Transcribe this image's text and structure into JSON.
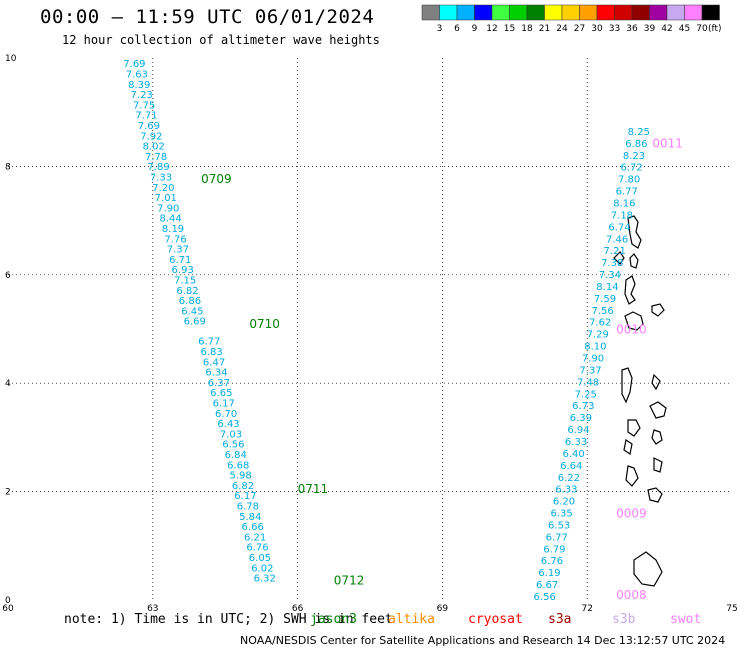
{
  "header": {
    "title": "00:00 – 11:59 UTC 06/01/2024",
    "subtitle": "12 hour collection of altimeter wave heights"
  },
  "colorbar": {
    "colors": [
      "#808080",
      "#00ffff",
      "#00b0ff",
      "#0000ff",
      "#40ff40",
      "#00d000",
      "#008000",
      "#ffff00",
      "#ffd000",
      "#ffa000",
      "#ff0000",
      "#d00000",
      "#900000",
      "#a000a0",
      "#c8a8f0",
      "#ff80ff",
      "#000000"
    ],
    "labels": [
      "3",
      "6",
      "9",
      "12",
      "15",
      "18",
      "21",
      "24",
      "27",
      "30",
      "33",
      "36",
      "39",
      "42",
      "45",
      "70"
    ],
    "unit": "(ft)"
  },
  "note": "note: 1) Time is in UTC; 2) SWH is in feet",
  "footer": "NOAA/NESDIS Center for Satellite Applications and Research   14 Dec 13:12:57 UTC 2024",
  "satellites": [
    {
      "name": "jason3",
      "color": "#008000"
    },
    {
      "name": "altika",
      "color": "#ff8c00"
    },
    {
      "name": "cryosat",
      "color": "#ff0000"
    },
    {
      "name": "s3a",
      "color": "#a00000"
    },
    {
      "name": "s3b",
      "color": "#c8a8f0"
    },
    {
      "name": "swot",
      "color": "#ff80ff"
    }
  ],
  "chart_data": {
    "type": "scatter",
    "xlim": [
      60,
      75
    ],
    "ylim": [
      0,
      10
    ],
    "x_ticks": [
      "60",
      "63",
      "66",
      "69",
      "72",
      "75"
    ],
    "y_ticks": [
      "0",
      "2",
      "4",
      "6",
      "8",
      "10"
    ],
    "grid": true,
    "value_color": "#00aadd",
    "series": [
      {
        "name": "jason3",
        "color": "#008000",
        "points": [
          {
            "x": 62.85,
            "y": 9.83,
            "v": "7.69"
          },
          {
            "x": 62.9,
            "y": 9.64,
            "v": "7.63"
          },
          {
            "x": 62.95,
            "y": 9.45,
            "v": "8.39"
          },
          {
            "x": 63.0,
            "y": 9.26,
            "v": "7.23"
          },
          {
            "x": 63.05,
            "y": 9.07,
            "v": "7.75"
          },
          {
            "x": 63.1,
            "y": 8.88,
            "v": "7.71"
          },
          {
            "x": 63.15,
            "y": 8.69,
            "v": "7.69"
          },
          {
            "x": 63.2,
            "y": 8.5,
            "v": "7.92"
          },
          {
            "x": 63.25,
            "y": 8.31,
            "v": "8.02"
          },
          {
            "x": 63.3,
            "y": 8.12,
            "v": "7.78"
          },
          {
            "x": 63.35,
            "y": 7.93,
            "v": "7.89"
          },
          {
            "x": 63.4,
            "y": 7.74,
            "v": "7.33"
          },
          {
            "x": 63.45,
            "y": 7.55,
            "v": "7.20"
          },
          {
            "x": 63.5,
            "y": 7.36,
            "v": "7.01"
          },
          {
            "x": 63.55,
            "y": 7.17,
            "v": "7.90"
          },
          {
            "x": 63.6,
            "y": 6.98,
            "v": "8.44"
          },
          {
            "x": 63.65,
            "y": 6.79,
            "v": "8.19"
          },
          {
            "x": 63.7,
            "y": 6.6,
            "v": "7.76"
          },
          {
            "x": 63.75,
            "y": 6.41,
            "v": "7.37"
          },
          {
            "x": 63.8,
            "y": 6.22,
            "v": "6.71"
          },
          {
            "x": 63.85,
            "y": 6.03,
            "v": "6.93"
          },
          {
            "x": 63.9,
            "y": 5.84,
            "v": "7.15"
          },
          {
            "x": 63.95,
            "y": 5.65,
            "v": "6.82"
          },
          {
            "x": 64.0,
            "y": 5.46,
            "v": "6.86"
          },
          {
            "x": 64.05,
            "y": 5.27,
            "v": "6.45"
          },
          {
            "x": 64.1,
            "y": 5.08,
            "v": "6.69"
          },
          {
            "x": 64.4,
            "y": 4.71,
            "v": "6.77"
          },
          {
            "x": 64.45,
            "y": 4.52,
            "v": "6.83"
          },
          {
            "x": 64.5,
            "y": 4.33,
            "v": "6.47"
          },
          {
            "x": 64.55,
            "y": 4.14,
            "v": "6.34"
          },
          {
            "x": 64.6,
            "y": 3.95,
            "v": "6.37"
          },
          {
            "x": 64.65,
            "y": 3.76,
            "v": "6.65"
          },
          {
            "x": 64.7,
            "y": 3.57,
            "v": "6.17"
          },
          {
            "x": 64.75,
            "y": 3.38,
            "v": "6.70"
          },
          {
            "x": 64.8,
            "y": 3.19,
            "v": "6.43"
          },
          {
            "x": 64.85,
            "y": 3.0,
            "v": "7.03"
          },
          {
            "x": 64.9,
            "y": 2.81,
            "v": "6.56"
          },
          {
            "x": 64.95,
            "y": 2.62,
            "v": "6.84"
          },
          {
            "x": 65.0,
            "y": 2.43,
            "v": "6.68"
          },
          {
            "x": 65.05,
            "y": 2.24,
            "v": "5.98"
          },
          {
            "x": 65.1,
            "y": 2.05,
            "v": "6.82"
          },
          {
            "x": 65.15,
            "y": 1.86,
            "v": "6.17"
          },
          {
            "x": 65.2,
            "y": 1.67,
            "v": "6.78"
          },
          {
            "x": 65.25,
            "y": 1.48,
            "v": "5.84"
          },
          {
            "x": 65.3,
            "y": 1.29,
            "v": "6.66"
          },
          {
            "x": 65.35,
            "y": 1.1,
            "v": "6.21"
          },
          {
            "x": 65.4,
            "y": 0.91,
            "v": "6.76"
          },
          {
            "x": 65.45,
            "y": 0.72,
            "v": "6.05"
          },
          {
            "x": 65.5,
            "y": 0.53,
            "v": "6.02"
          },
          {
            "x": 65.55,
            "y": 0.34,
            "v": "6.32"
          }
        ],
        "passes": [
          {
            "x": 64.0,
            "y": 7.69,
            "label": "0709"
          },
          {
            "x": 65.0,
            "y": 5.02,
            "label": "0710"
          },
          {
            "x": 66.0,
            "y": 1.97,
            "label": "0711"
          },
          {
            "x": 66.75,
            "y": 0.29,
            "label": "0712"
          }
        ]
      },
      {
        "name": "swot",
        "color": "#ff80ff",
        "points": [
          {
            "x": 71.35,
            "y": 0.0,
            "v": "6.56"
          },
          {
            "x": 71.4,
            "y": 0.22,
            "v": "6.67"
          },
          {
            "x": 71.45,
            "y": 0.44,
            "v": "6.19"
          },
          {
            "x": 71.5,
            "y": 0.66,
            "v": "6.76"
          },
          {
            "x": 71.55,
            "y": 0.88,
            "v": "6.79"
          },
          {
            "x": 71.6,
            "y": 1.1,
            "v": "6.77"
          },
          {
            "x": 71.65,
            "y": 1.32,
            "v": "6.53"
          },
          {
            "x": 71.7,
            "y": 1.54,
            "v": "6.35"
          },
          {
            "x": 71.75,
            "y": 1.76,
            "v": "6.20"
          },
          {
            "x": 71.8,
            "y": 1.98,
            "v": "6.33"
          },
          {
            "x": 71.85,
            "y": 2.2,
            "v": "6.22"
          },
          {
            "x": 71.9,
            "y": 2.42,
            "v": "6.64"
          },
          {
            "x": 71.95,
            "y": 2.64,
            "v": "6.40"
          },
          {
            "x": 72.0,
            "y": 2.86,
            "v": "6.33"
          },
          {
            "x": 72.05,
            "y": 3.08,
            "v": "6.94"
          },
          {
            "x": 72.1,
            "y": 3.3,
            "v": "6.39"
          },
          {
            "x": 72.15,
            "y": 3.52,
            "v": "6.73"
          },
          {
            "x": 72.2,
            "y": 3.74,
            "v": "7.25"
          },
          {
            "x": 72.25,
            "y": 3.96,
            "v": "7.48"
          },
          {
            "x": 72.3,
            "y": 4.18,
            "v": "7.37"
          },
          {
            "x": 72.35,
            "y": 4.4,
            "v": "7.90"
          },
          {
            "x": 72.4,
            "y": 4.62,
            "v": "8.10"
          },
          {
            "x": 72.45,
            "y": 4.84,
            "v": "7.29"
          },
          {
            "x": 72.5,
            "y": 5.06,
            "v": "7.62"
          },
          {
            "x": 72.55,
            "y": 5.28,
            "v": "7.56"
          },
          {
            "x": 72.6,
            "y": 5.5,
            "v": "7.59"
          },
          {
            "x": 72.65,
            "y": 5.72,
            "v": "8.14"
          },
          {
            "x": 72.7,
            "y": 5.94,
            "v": "7.34"
          },
          {
            "x": 72.75,
            "y": 6.16,
            "v": "7.38"
          },
          {
            "x": 72.8,
            "y": 6.38,
            "v": "7.21"
          },
          {
            "x": 72.85,
            "y": 6.6,
            "v": "7.46"
          },
          {
            "x": 72.9,
            "y": 6.82,
            "v": "6.74"
          },
          {
            "x": 72.95,
            "y": 7.04,
            "v": "7.18"
          },
          {
            "x": 73.0,
            "y": 7.26,
            "v": "8.16"
          },
          {
            "x": 73.05,
            "y": 7.48,
            "v": "6.77"
          },
          {
            "x": 73.1,
            "y": 7.7,
            "v": "7.80"
          },
          {
            "x": 73.15,
            "y": 7.92,
            "v": "6.72"
          },
          {
            "x": 73.2,
            "y": 8.14,
            "v": "8.23"
          },
          {
            "x": 73.25,
            "y": 8.36,
            "v": "6.86"
          },
          {
            "x": 73.3,
            "y": 8.58,
            "v": "8.25"
          }
        ],
        "passes": [
          {
            "x": 72.6,
            "y": 0.02,
            "label": "0008"
          },
          {
            "x": 72.6,
            "y": 1.52,
            "label": "0009"
          },
          {
            "x": 72.6,
            "y": 4.92,
            "label": "0010"
          },
          {
            "x": 73.35,
            "y": 8.35,
            "label": "0011"
          }
        ]
      }
    ]
  }
}
